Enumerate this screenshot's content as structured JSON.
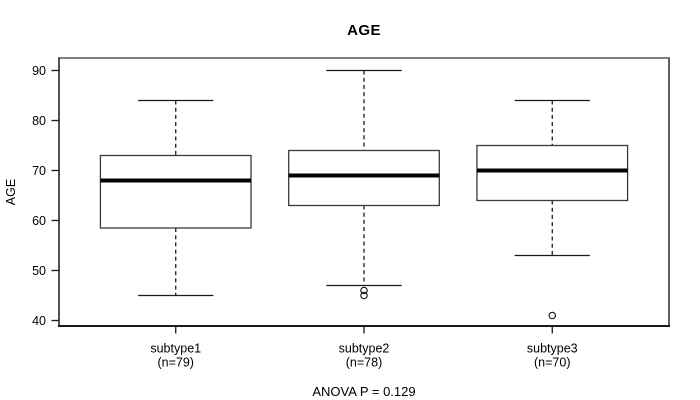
{
  "chart_data": {
    "type": "boxplot",
    "title": "AGE",
    "ylabel": "AGE",
    "annotation": "ANOVA P = 0.129",
    "ylim": [
      38.9,
      92.5
    ],
    "yticks": [
      40,
      50,
      60,
      70,
      80,
      90
    ],
    "grid": false,
    "legend": "none",
    "groups": [
      {
        "label": "subtype1",
        "sublabel": "(n=79)",
        "n": 79,
        "whisker_low": 45,
        "q1": 58.5,
        "median": 68,
        "q3": 73,
        "whisker_high": 84,
        "outliers": []
      },
      {
        "label": "subtype2",
        "sublabel": "(n=78)",
        "n": 78,
        "whisker_low": 47,
        "q1": 63,
        "median": 69,
        "q3": 74,
        "whisker_high": 90,
        "outliers": [
          46,
          45
        ]
      },
      {
        "label": "subtype3",
        "sublabel": "(n=70)",
        "n": 70,
        "whisker_low": 53,
        "q1": 64,
        "median": 70,
        "q3": 75,
        "whisker_high": 84,
        "outliers": [
          41
        ]
      }
    ],
    "colors": {
      "background": "#ffffff",
      "box_fill": "#ffffff",
      "line": "#000000",
      "frame_top": "#808080",
      "frame_side": "#5f5f5f",
      "frame_dark": "#1a1a1a"
    }
  }
}
